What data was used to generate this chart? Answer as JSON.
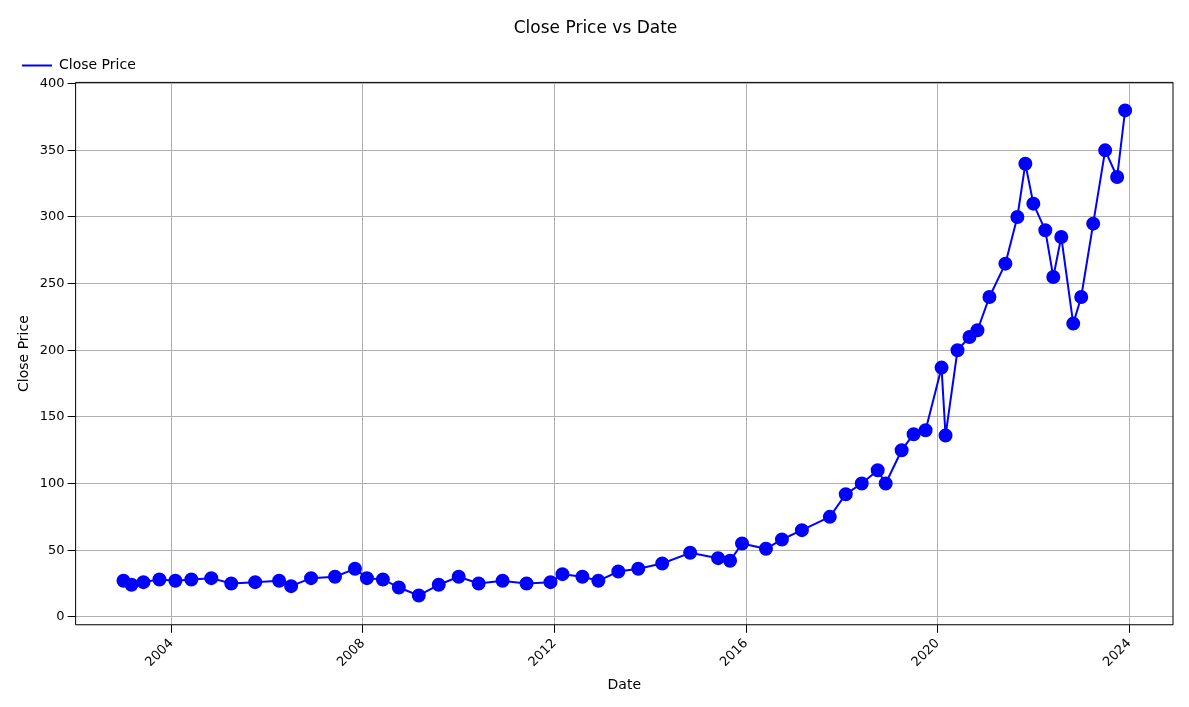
{
  "chart_data": {
    "type": "line",
    "title": "Close Price vs Date",
    "xlabel": "Date",
    "ylabel": "Close Price",
    "x": [
      "2003-01",
      "2003-03",
      "2003-06",
      "2003-10",
      "2004-02",
      "2004-06",
      "2004-11",
      "2005-04",
      "2005-10",
      "2006-04",
      "2006-07",
      "2006-12",
      "2007-06",
      "2007-11",
      "2008-02",
      "2008-06",
      "2008-10",
      "2009-03",
      "2009-08",
      "2010-01",
      "2010-06",
      "2010-12",
      "2011-06",
      "2011-12",
      "2012-03",
      "2012-08",
      "2012-12",
      "2013-05",
      "2013-10",
      "2014-04",
      "2014-11",
      "2015-06",
      "2015-09",
      "2015-12",
      "2016-06",
      "2016-10",
      "2017-03",
      "2017-10",
      "2018-02",
      "2018-06",
      "2018-10",
      "2018-12",
      "2019-04",
      "2019-07",
      "2019-10",
      "2020-02",
      "2020-03",
      "2020-06",
      "2020-09",
      "2020-11",
      "2021-02",
      "2021-06",
      "2021-09",
      "2021-11",
      "2022-01",
      "2022-04",
      "2022-06",
      "2022-08",
      "2022-11",
      "2023-01",
      "2023-04",
      "2023-07",
      "2023-10",
      "2023-12"
    ],
    "series": [
      {
        "name": "Close Price",
        "color": "#0000ff",
        "values": [
          27,
          24,
          26,
          28,
          27,
          28,
          29,
          25,
          26,
          27,
          23,
          29,
          30,
          36,
          29,
          28,
          22,
          16,
          24,
          30,
          25,
          27,
          25,
          26,
          32,
          30,
          27,
          34,
          36,
          40,
          48,
          44,
          42,
          55,
          51,
          58,
          65,
          75,
          92,
          100,
          110,
          100,
          125,
          137,
          140,
          187,
          136,
          200,
          210,
          215,
          240,
          265,
          300,
          340,
          310,
          290,
          255,
          285,
          220,
          240,
          295,
          350,
          330,
          380
        ]
      }
    ],
    "xlim": [
      "2002-01",
      "2024-12"
    ],
    "xticks": [
      "2004",
      "2008",
      "2012",
      "2016",
      "2020",
      "2024"
    ],
    "ylim": [
      -6,
      401
    ],
    "yticks": [
      0,
      50,
      100,
      150,
      200,
      250,
      300,
      350,
      400
    ],
    "grid": true,
    "legend": "top left",
    "marker": "circle",
    "line_style": "solid"
  }
}
